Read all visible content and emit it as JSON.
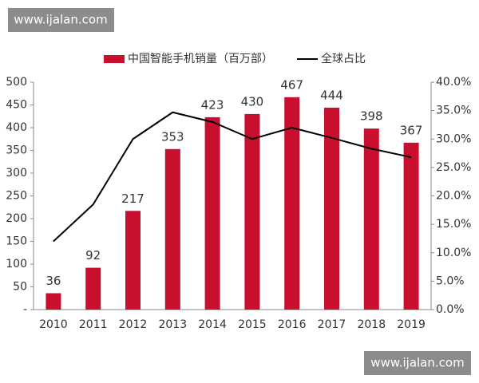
{
  "watermarks": [
    "www.ijalan.com",
    "www.ijalan.com"
  ],
  "chart_data": {
    "type": "bar",
    "categories": [
      "2010",
      "2011",
      "2012",
      "2013",
      "2014",
      "2015",
      "2016",
      "2017",
      "2018",
      "2019"
    ],
    "series": [
      {
        "name": "中国智能手机销量（百万部）",
        "type": "bar",
        "color": "#c8102e",
        "values": [
          36,
          92,
          217,
          353,
          423,
          430,
          467,
          444,
          398,
          367
        ]
      },
      {
        "name": "全球占比",
        "type": "line",
        "axis": "y2",
        "color": "#000000",
        "values": [
          12.0,
          18.5,
          30.0,
          34.7,
          33.0,
          30.0,
          32.0,
          30.2,
          28.3,
          26.8
        ]
      }
    ],
    "ylim": [
      0,
      500
    ],
    "yticks": [
      {
        "value": 0,
        "label": "-"
      },
      50,
      100,
      150,
      200,
      250,
      300,
      350,
      400,
      450,
      500
    ],
    "y2lim": [
      0,
      40
    ],
    "y2ticks": [
      {
        "value": 0,
        "label": "0.0%"
      },
      {
        "value": 5,
        "label": "5.0%"
      },
      {
        "value": 10,
        "label": "10.0%"
      },
      {
        "value": 15,
        "label": "15.0%"
      },
      {
        "value": 20,
        "label": "20.0%"
      },
      {
        "value": 25,
        "label": "25.0%"
      },
      {
        "value": 30,
        "label": "30.0%"
      },
      {
        "value": 35,
        "label": "35.0%"
      },
      {
        "value": 40,
        "label": "40.0%"
      }
    ],
    "grid": false,
    "legend": "top"
  }
}
